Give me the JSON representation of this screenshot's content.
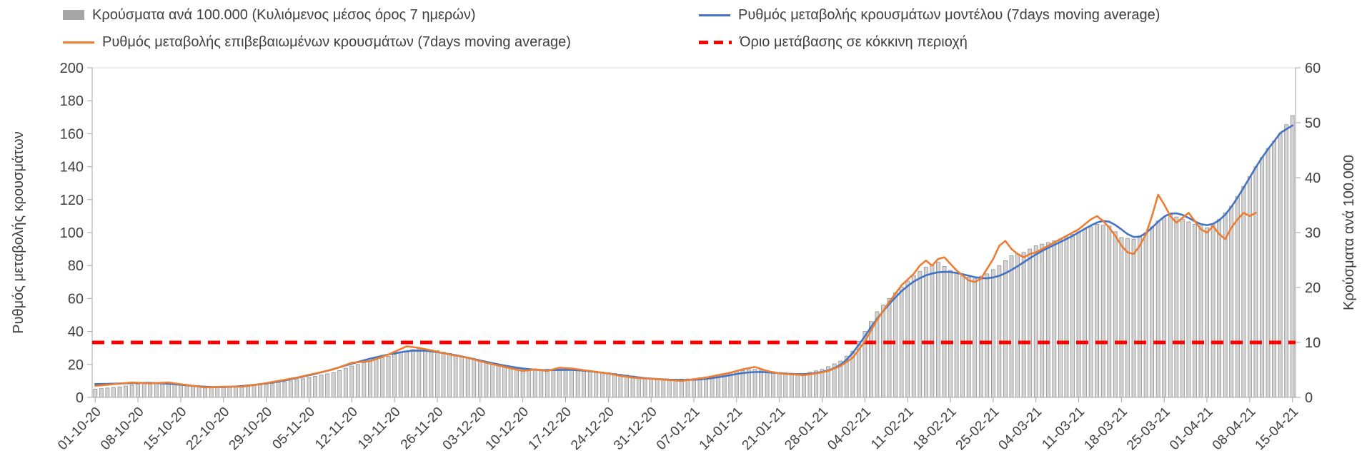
{
  "legend": {
    "items": [
      {
        "label": "Κρούσματα ανά 100.000 (Κυλιόμενος μέσος όρος 7 ημερών)",
        "swatch": "bar",
        "color": "#a6a6a6"
      },
      {
        "label": "Ρυθμός μεταβολής κρουσμάτων μοντέλου (7days moving average)",
        "swatch": "line",
        "color": "#4472c4"
      },
      {
        "label": "Ρυθμός μεταβολής επιβεβαιωμένων κρουσμάτων (7days moving average)",
        "swatch": "line",
        "color": "#ed7d31"
      },
      {
        "label": "Όριο μετάβασης σε κόκκινη περιοχή",
        "swatch": "dashed",
        "color": "#ff0000"
      }
    ]
  },
  "chart_data": {
    "type": "combo-bar-line",
    "legend_position": "top",
    "plot_background": "#ffffff",
    "grid": false,
    "days": 197,
    "x_tick_labels": [
      "01-10-20",
      "08-10-20",
      "15-10-20",
      "22-10-20",
      "29-10-20",
      "05-11-20",
      "12-11-20",
      "19-11-20",
      "26-11-20",
      "03-12-20",
      "10-12-20",
      "17-12-20",
      "24-12-20",
      "31-12-20",
      "07-01-21",
      "14-01-21",
      "21-01-21",
      "28-01-21",
      "04-02-21",
      "11-02-21",
      "18-02-21",
      "25-02-21",
      "04-03-21",
      "11-03-21",
      "18-03-21",
      "25-03-21",
      "01-04-21",
      "08-04-21",
      "15-04-21"
    ],
    "left_axis": {
      "title": "Ρυθμός μεταβολής κρουσμάτων",
      "min": 0,
      "max": 200,
      "step": 20,
      "ticks": [
        0,
        20,
        40,
        60,
        80,
        100,
        120,
        140,
        160,
        180,
        200
      ]
    },
    "right_axis": {
      "title": "Κρούσματα ανά 100.000",
      "min": 0,
      "max": 60,
      "step": 10,
      "ticks": [
        0,
        10,
        20,
        30,
        40,
        50,
        60
      ]
    },
    "threshold": {
      "label": "Όριο μετάβασης σε κόκκινη περιοχή",
      "axis": "right",
      "value": 10,
      "color": "#ff0000"
    },
    "series": [
      {
        "name": "Κρούσματα ανά 100.000 (Κυλιόμενος μέσος όρος 7 ημερών)",
        "type": "bar",
        "axis": "right",
        "fill": "#d4d4d4",
        "stroke": "#8f8f8f",
        "anchors": [
          [
            0,
            1.5
          ],
          [
            4,
            1.9
          ],
          [
            7,
            2.4
          ],
          [
            11,
            2.6
          ],
          [
            14,
            2.4
          ],
          [
            18,
            2.0
          ],
          [
            21,
            1.8
          ],
          [
            25,
            2.1
          ],
          [
            28,
            2.4
          ],
          [
            32,
            3.0
          ],
          [
            35,
            3.6
          ],
          [
            39,
            4.5
          ],
          [
            42,
            5.7
          ],
          [
            46,
            6.9
          ],
          [
            49,
            7.8
          ],
          [
            53,
            9.0
          ],
          [
            56,
            8.5
          ],
          [
            60,
            7.5
          ],
          [
            63,
            6.6
          ],
          [
            67,
            5.7
          ],
          [
            70,
            5.1
          ],
          [
            74,
            5.1
          ],
          [
            77,
            5.2
          ],
          [
            81,
            4.8
          ],
          [
            84,
            4.5
          ],
          [
            88,
            3.9
          ],
          [
            91,
            3.4
          ],
          [
            95,
            3.3
          ],
          [
            98,
            3.4
          ],
          [
            101,
            3.9
          ],
          [
            105,
            4.8
          ],
          [
            108,
            5.1
          ],
          [
            112,
            4.5
          ],
          [
            116,
            4.3
          ],
          [
            119,
            5.1
          ],
          [
            122,
            6.6
          ],
          [
            124,
            8.4
          ],
          [
            126,
            12.0
          ],
          [
            128,
            15.6
          ],
          [
            130,
            18.0
          ],
          [
            132,
            20.1
          ],
          [
            134,
            22.2
          ],
          [
            136,
            23.7
          ],
          [
            138,
            24.6
          ],
          [
            140,
            23.1
          ],
          [
            142,
            22.2
          ],
          [
            144,
            21.6
          ],
          [
            146,
            22.5
          ],
          [
            148,
            24.0
          ],
          [
            150,
            25.8
          ],
          [
            152,
            26.4
          ],
          [
            154,
            27.6
          ],
          [
            156,
            28.2
          ],
          [
            158,
            28.8
          ],
          [
            160,
            29.7
          ],
          [
            162,
            30.6
          ],
          [
            164,
            31.5
          ],
          [
            166,
            31.2
          ],
          [
            168,
            29.1
          ],
          [
            170,
            28.8
          ],
          [
            172,
            30.0
          ],
          [
            174,
            32.1
          ],
          [
            176,
            33.3
          ],
          [
            178,
            32.4
          ],
          [
            180,
            31.5
          ],
          [
            182,
            30.9
          ],
          [
            184,
            32.4
          ],
          [
            186,
            34.8
          ],
          [
            188,
            38.4
          ],
          [
            190,
            42.0
          ],
          [
            192,
            45.3
          ],
          [
            194,
            48.0
          ],
          [
            196,
            51.3
          ]
        ]
      },
      {
        "name": "Ρυθμός μεταβολής κρουσμάτων μοντέλου (7days moving average)",
        "type": "line",
        "axis": "left",
        "color": "#4472c4",
        "smooth": true,
        "anchors": [
          [
            0,
            8
          ],
          [
            5,
            8.5
          ],
          [
            9,
            9
          ],
          [
            13,
            8
          ],
          [
            18,
            6.3
          ],
          [
            22,
            6.2
          ],
          [
            26,
            7.5
          ],
          [
            30,
            9.5
          ],
          [
            34,
            12.5
          ],
          [
            38,
            16
          ],
          [
            42,
            20.5
          ],
          [
            46,
            24.5
          ],
          [
            50,
            27.5
          ],
          [
            53,
            29
          ],
          [
            56,
            27.5
          ],
          [
            60,
            25
          ],
          [
            64,
            21.5
          ],
          [
            68,
            18.5
          ],
          [
            71,
            17
          ],
          [
            74,
            16.2
          ],
          [
            77,
            17
          ],
          [
            80,
            16.3
          ],
          [
            83,
            15
          ],
          [
            86,
            13.5
          ],
          [
            89,
            12
          ],
          [
            92,
            11
          ],
          [
            95,
            10.6
          ],
          [
            98,
            10.5
          ],
          [
            101,
            11.5
          ],
          [
            104,
            13.5
          ],
          [
            107,
            15.6
          ],
          [
            110,
            15.4
          ],
          [
            113,
            14.3
          ],
          [
            116,
            13.8
          ],
          [
            119,
            15
          ],
          [
            122,
            18.5
          ],
          [
            124,
            25
          ],
          [
            126,
            38
          ],
          [
            128,
            48
          ],
          [
            130,
            57
          ],
          [
            132,
            65
          ],
          [
            134,
            71
          ],
          [
            136,
            74.5
          ],
          [
            138,
            76.5
          ],
          [
            140,
            76.5
          ],
          [
            142,
            75
          ],
          [
            144,
            72.5
          ],
          [
            146,
            71.5
          ],
          [
            148,
            73
          ],
          [
            150,
            77
          ],
          [
            152,
            82
          ],
          [
            154,
            87
          ],
          [
            156,
            91
          ],
          [
            158,
            94
          ],
          [
            160,
            98
          ],
          [
            162,
            102
          ],
          [
            164,
            107
          ],
          [
            166,
            109
          ],
          [
            167,
            107
          ],
          [
            168,
            102
          ],
          [
            169,
            97
          ],
          [
            170,
            94.5
          ],
          [
            171,
            95
          ],
          [
            172,
            98
          ],
          [
            173,
            103
          ],
          [
            174,
            108
          ],
          [
            175,
            111
          ],
          [
            176,
            113
          ],
          [
            177,
            113.5
          ],
          [
            178,
            112
          ],
          [
            179,
            109
          ],
          [
            180,
            106
          ],
          [
            181,
            104
          ],
          [
            182,
            103
          ],
          [
            183,
            103.5
          ],
          [
            184,
            106
          ],
          [
            185,
            110
          ],
          [
            186,
            115
          ],
          [
            187,
            120
          ],
          [
            188,
            127
          ],
          [
            189,
            134
          ],
          [
            190,
            140
          ],
          [
            191,
            146
          ],
          [
            192,
            151
          ],
          [
            193,
            156
          ],
          [
            194,
            160
          ],
          [
            195,
            164
          ],
          [
            196,
            171
          ]
        ]
      },
      {
        "name": "Ρυθμός μεταβολής επιβεβαιωμένων κρουσμάτων (7days moving average)",
        "type": "line",
        "axis": "left",
        "color": "#ed7d31",
        "smooth": false,
        "anchors": [
          [
            0,
            7
          ],
          [
            3,
            8
          ],
          [
            6,
            9
          ],
          [
            9,
            8.5
          ],
          [
            12,
            9
          ],
          [
            15,
            7.5
          ],
          [
            18,
            6
          ],
          [
            21,
            6.5
          ],
          [
            24,
            6.5
          ],
          [
            27,
            8
          ],
          [
            30,
            10
          ],
          [
            33,
            12
          ],
          [
            36,
            14.5
          ],
          [
            39,
            17
          ],
          [
            42,
            21
          ],
          [
            45,
            22
          ],
          [
            48,
            26
          ],
          [
            51,
            31
          ],
          [
            53,
            30
          ],
          [
            55,
            28.5
          ],
          [
            58,
            26
          ],
          [
            61,
            24
          ],
          [
            64,
            21
          ],
          [
            67,
            18.5
          ],
          [
            70,
            16
          ],
          [
            72,
            17
          ],
          [
            74,
            16
          ],
          [
            76,
            18
          ],
          [
            78,
            17.5
          ],
          [
            80,
            16.5
          ],
          [
            82,
            15.5
          ],
          [
            84,
            14.5
          ],
          [
            86,
            13
          ],
          [
            88,
            12
          ],
          [
            90,
            11.5
          ],
          [
            92,
            11
          ],
          [
            94,
            10.5
          ],
          [
            96,
            10
          ],
          [
            98,
            11
          ],
          [
            100,
            12
          ],
          [
            102,
            13.5
          ],
          [
            104,
            15
          ],
          [
            106,
            17
          ],
          [
            108,
            18.5
          ],
          [
            110,
            16
          ],
          [
            112,
            14.5
          ],
          [
            114,
            14
          ],
          [
            116,
            13.5
          ],
          [
            118,
            14.5
          ],
          [
            120,
            16
          ],
          [
            122,
            19
          ],
          [
            124,
            24
          ],
          [
            126,
            34
          ],
          [
            128,
            47
          ],
          [
            130,
            58
          ],
          [
            132,
            68
          ],
          [
            134,
            75
          ],
          [
            135,
            80
          ],
          [
            136,
            83
          ],
          [
            137,
            80
          ],
          [
            138,
            84
          ],
          [
            139,
            85
          ],
          [
            140,
            81
          ],
          [
            141,
            77
          ],
          [
            142,
            74
          ],
          [
            143,
            71
          ],
          [
            144,
            70
          ],
          [
            145,
            72
          ],
          [
            146,
            78
          ],
          [
            147,
            84
          ],
          [
            148,
            92
          ],
          [
            149,
            95
          ],
          [
            150,
            90
          ],
          [
            151,
            87
          ],
          [
            152,
            85
          ],
          [
            153,
            87
          ],
          [
            154,
            88
          ],
          [
            156,
            92
          ],
          [
            158,
            96
          ],
          [
            160,
            100
          ],
          [
            161,
            102
          ],
          [
            162,
            105
          ],
          [
            163,
            108
          ],
          [
            164,
            110
          ],
          [
            165,
            107
          ],
          [
            166,
            103
          ],
          [
            167,
            98
          ],
          [
            168,
            92
          ],
          [
            169,
            88
          ],
          [
            170,
            87
          ],
          [
            171,
            92
          ],
          [
            172,
            99
          ],
          [
            173,
            110
          ],
          [
            174,
            123
          ],
          [
            175,
            117
          ],
          [
            176,
            110
          ],
          [
            177,
            106
          ],
          [
            178,
            109
          ],
          [
            179,
            112
          ],
          [
            180,
            107
          ],
          [
            181,
            102
          ],
          [
            182,
            100
          ],
          [
            183,
            104
          ],
          [
            184,
            99
          ],
          [
            185,
            96
          ],
          [
            186,
            103
          ],
          [
            187,
            108
          ],
          [
            188,
            112
          ],
          [
            189,
            110
          ],
          [
            190,
            112
          ]
        ]
      }
    ]
  }
}
